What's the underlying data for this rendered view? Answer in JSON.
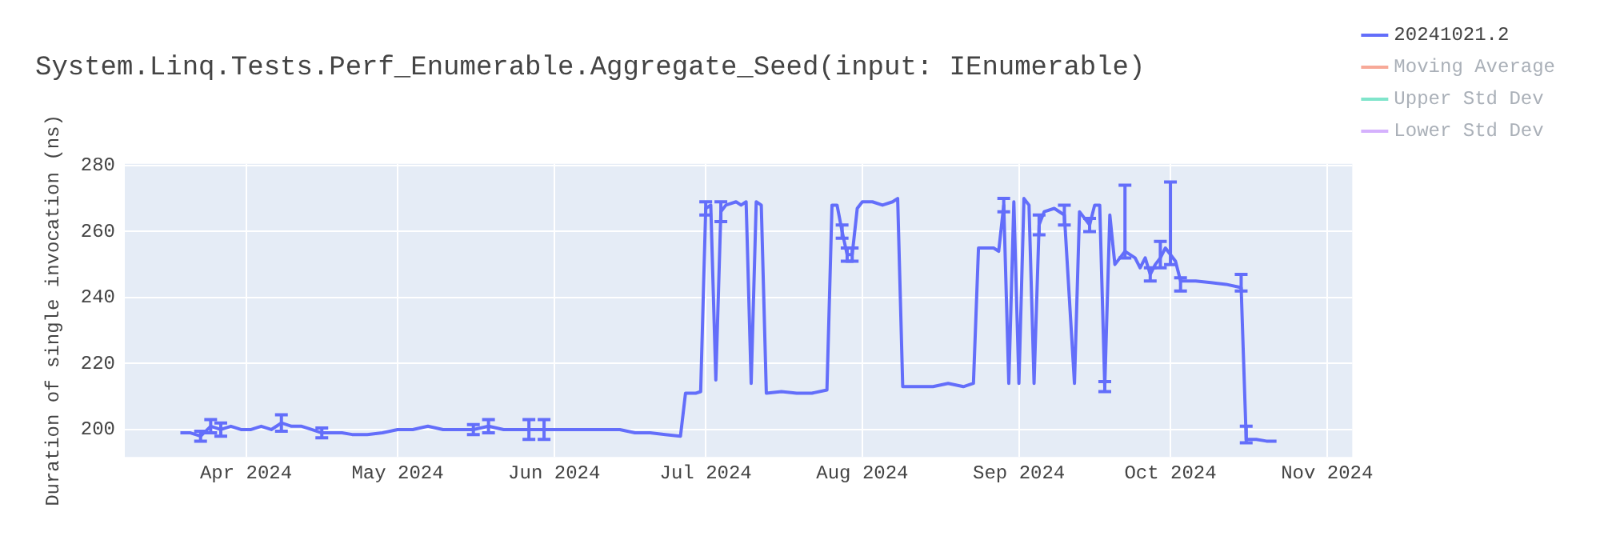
{
  "chart_data": {
    "type": "line",
    "title": "System.Linq.Tests.Perf_Enumerable.Aggregate_Seed(input: IEnumerable)",
    "ylabel": "Duration of single invocation (ns)",
    "xlim": [
      "2024-03-08",
      "2024-11-06"
    ],
    "xticks": [
      {
        "value": "2024-04-01",
        "label": "Apr 2024"
      },
      {
        "value": "2024-05-01",
        "label": "May 2024"
      },
      {
        "value": "2024-06-01",
        "label": "Jun 2024"
      },
      {
        "value": "2024-07-01",
        "label": "Jul 2024"
      },
      {
        "value": "2024-08-01",
        "label": "Aug 2024"
      },
      {
        "value": "2024-09-01",
        "label": "Sep 2024"
      },
      {
        "value": "2024-10-01",
        "label": "Oct 2024"
      },
      {
        "value": "2024-11-01",
        "label": "Nov 2024"
      }
    ],
    "ylim": [
      191.7,
      280.5
    ],
    "yticks": [
      200,
      220,
      240,
      260,
      280
    ],
    "grid": true,
    "legend": "top right",
    "line_style": "solid",
    "series": [
      {
        "name": "20241021.2",
        "color": "#636efa",
        "x": [
          "2024-03-19",
          "2024-03-21",
          "2024-03-23",
          "2024-03-25",
          "2024-03-27",
          "2024-03-29",
          "2024-03-31",
          "2024-04-02",
          "2024-04-04",
          "2024-04-06",
          "2024-04-08",
          "2024-04-10",
          "2024-04-12",
          "2024-04-14",
          "2024-04-16",
          "2024-04-18",
          "2024-04-20",
          "2024-04-22",
          "2024-04-25",
          "2024-04-28",
          "2024-05-01",
          "2024-05-04",
          "2024-05-07",
          "2024-05-10",
          "2024-05-13",
          "2024-05-16",
          "2024-05-19",
          "2024-05-22",
          "2024-05-25",
          "2024-05-27",
          "2024-05-30",
          "2024-06-02",
          "2024-06-05",
          "2024-06-08",
          "2024-06-11",
          "2024-06-14",
          "2024-06-17",
          "2024-06-20",
          "2024-06-23",
          "2024-06-26",
          "2024-06-27",
          "2024-06-29",
          "2024-06-30",
          "2024-07-01",
          "2024-07-02",
          "2024-07-03",
          "2024-07-04",
          "2024-07-05",
          "2024-07-07",
          "2024-07-08",
          "2024-07-09",
          "2024-07-10",
          "2024-07-11",
          "2024-07-12",
          "2024-07-13",
          "2024-07-16",
          "2024-07-19",
          "2024-07-22",
          "2024-07-25",
          "2024-07-26",
          "2024-07-27",
          "2024-07-28",
          "2024-07-29",
          "2024-07-30",
          "2024-07-31",
          "2024-08-01",
          "2024-08-03",
          "2024-08-05",
          "2024-08-07",
          "2024-08-08",
          "2024-08-09",
          "2024-08-12",
          "2024-08-15",
          "2024-08-18",
          "2024-08-21",
          "2024-08-23",
          "2024-08-24",
          "2024-08-27",
          "2024-08-28",
          "2024-08-29",
          "2024-08-30",
          "2024-08-31",
          "2024-09-01",
          "2024-09-02",
          "2024-09-03",
          "2024-09-04",
          "2024-09-05",
          "2024-09-06",
          "2024-09-08",
          "2024-09-10",
          "2024-09-12",
          "2024-09-13",
          "2024-09-15",
          "2024-09-16",
          "2024-09-17",
          "2024-09-18",
          "2024-09-19",
          "2024-09-20",
          "2024-09-22",
          "2024-09-24",
          "2024-09-25",
          "2024-09-26",
          "2024-09-27",
          "2024-09-28",
          "2024-09-29",
          "2024-09-30",
          "2024-10-01",
          "2024-10-02",
          "2024-10-03",
          "2024-10-06",
          "2024-10-09",
          "2024-10-12",
          "2024-10-15",
          "2024-10-16",
          "2024-10-18",
          "2024-10-20",
          "2024-10-22"
        ],
        "values": [
          199,
          199,
          198,
          201,
          200,
          201,
          200,
          200,
          201,
          200,
          202,
          201,
          201,
          200,
          199,
          199,
          199,
          198.5,
          198.5,
          199,
          200,
          200,
          201,
          200,
          200,
          200,
          201,
          200,
          200,
          200,
          200,
          200,
          200,
          200,
          200,
          200,
          199,
          199,
          198.5,
          198,
          211,
          211,
          211.5,
          267,
          268,
          215,
          266,
          268,
          269,
          268,
          269,
          214,
          269,
          268,
          211,
          211.5,
          211,
          211,
          212,
          268,
          268,
          260,
          253,
          253,
          267,
          269,
          269,
          268,
          269,
          270,
          213,
          213,
          213,
          214,
          213,
          214,
          255,
          255,
          254,
          268,
          214,
          269,
          214,
          270,
          268,
          214,
          262,
          266,
          267,
          265,
          214,
          266,
          262,
          268,
          268,
          213,
          265,
          250,
          254,
          252,
          249,
          252,
          247,
          250,
          252,
          255,
          253,
          251,
          245,
          245,
          244.5,
          244,
          243,
          197,
          197,
          196.5,
          196.5
        ],
        "errors": [
          null,
          null,
          1.5,
          2,
          2,
          null,
          null,
          null,
          null,
          null,
          2.5,
          null,
          null,
          null,
          1.5,
          null,
          null,
          null,
          null,
          null,
          null,
          null,
          null,
          null,
          null,
          1.5,
          2,
          null,
          null,
          3,
          3,
          null,
          null,
          null,
          null,
          null,
          null,
          null,
          null,
          null,
          null,
          null,
          null,
          2,
          null,
          null,
          3,
          null,
          null,
          null,
          null,
          null,
          null,
          null,
          null,
          null,
          null,
          null,
          null,
          null,
          null,
          2,
          2,
          2,
          null,
          null,
          null,
          null,
          null,
          null,
          null,
          null,
          null,
          null,
          null,
          null,
          null,
          null,
          null,
          2,
          null,
          null,
          null,
          null,
          null,
          null,
          3,
          null,
          null,
          3,
          null,
          null,
          2,
          null,
          null,
          1.5,
          null,
          null,
          [
            252,
            274
          ],
          null,
          null,
          null,
          [
            245,
            249
          ],
          null,
          [
            249,
            257
          ],
          null,
          [
            250,
            275
          ],
          null,
          [
            242,
            246
          ],
          null,
          null,
          null,
          [
            242,
            247
          ],
          [
            196,
            201
          ],
          null,
          null,
          null
        ]
      },
      {
        "name": "Moving Average",
        "color": "#f7a998"
      },
      {
        "name": "Upper Std Dev",
        "color": "#80e5cb"
      },
      {
        "name": "Lower Std Dev",
        "color": "#d5b1fd"
      }
    ]
  }
}
